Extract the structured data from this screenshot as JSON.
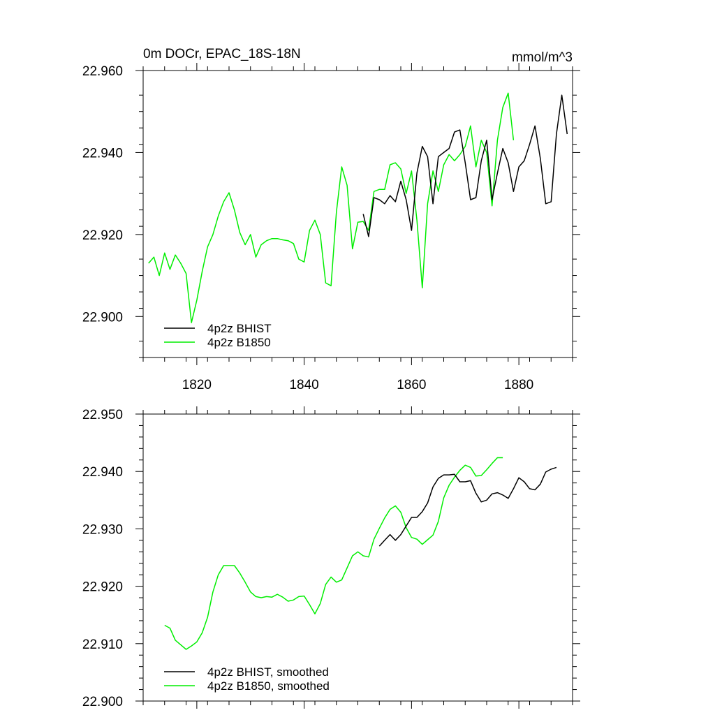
{
  "chart_data": [
    {
      "type": "line",
      "title": "0m DOCr, EPAC_18S-18N",
      "units": "mmol/m^3",
      "xlim": [
        1810,
        1890
      ],
      "ylim": [
        22.89,
        22.96
      ],
      "x_ticks": [
        1820,
        1840,
        1860,
        1880
      ],
      "x_tick_labels": [
        "1820",
        "1840",
        "1860",
        "1880"
      ],
      "y_ticks": [
        22.9,
        22.92,
        22.94,
        22.96
      ],
      "y_tick_labels": [
        "22.900",
        "22.920",
        "22.940",
        "22.960"
      ],
      "legend_position": "bottom-left",
      "grid": false,
      "series": [
        {
          "name": "4p2z BHIST",
          "color": "#000000",
          "x": [
            1851,
            1852,
            1853,
            1854,
            1855,
            1856,
            1857,
            1858,
            1859,
            1860,
            1861,
            1862,
            1863,
            1864,
            1865,
            1866,
            1867,
            1868,
            1869,
            1870,
            1871,
            1872,
            1873,
            1874,
            1875,
            1876,
            1877,
            1878,
            1879,
            1880,
            1881,
            1882,
            1883,
            1884,
            1885,
            1886,
            1887,
            1888,
            1889
          ],
          "y": [
            22.925,
            22.9195,
            22.929,
            22.9285,
            22.9275,
            22.9295,
            22.928,
            22.933,
            22.9285,
            22.921,
            22.935,
            22.9415,
            22.939,
            22.9275,
            22.939,
            22.94,
            22.941,
            22.945,
            22.9455,
            22.9375,
            22.9285,
            22.929,
            22.938,
            22.943,
            22.9285,
            22.935,
            22.941,
            22.9375,
            22.9305,
            22.9365,
            22.938,
            22.942,
            22.9465,
            22.9385,
            22.9275,
            22.928,
            22.9445,
            22.954,
            22.9445
          ]
        },
        {
          "name": "4p2z B1850",
          "color": "#00ee00",
          "x": [
            1811,
            1812,
            1813,
            1814,
            1815,
            1816,
            1817,
            1818,
            1819,
            1820,
            1821,
            1822,
            1823,
            1824,
            1825,
            1826,
            1827,
            1828,
            1829,
            1830,
            1831,
            1832,
            1833,
            1834,
            1835,
            1836,
            1837,
            1838,
            1839,
            1840,
            1841,
            1842,
            1843,
            1844,
            1845,
            1846,
            1847,
            1848,
            1849,
            1850,
            1851,
            1852,
            1853,
            1854,
            1855,
            1856,
            1857,
            1858,
            1859,
            1860,
            1861,
            1862,
            1863,
            1864,
            1865,
            1866,
            1867,
            1868,
            1869,
            1870,
            1871,
            1872,
            1873,
            1874,
            1875,
            1876,
            1877,
            1878,
            1879
          ],
          "y": [
            22.913,
            22.9145,
            22.91,
            22.9155,
            22.9115,
            22.915,
            22.913,
            22.9105,
            22.8985,
            22.904,
            22.911,
            22.917,
            22.92,
            22.9245,
            22.928,
            22.9302,
            22.926,
            22.9205,
            22.9175,
            22.92,
            22.9145,
            22.9175,
            22.9185,
            22.919,
            22.919,
            22.9187,
            22.9185,
            22.9178,
            22.914,
            22.9133,
            22.921,
            22.9235,
            22.92,
            22.9082,
            22.9075,
            22.9255,
            22.9365,
            22.932,
            22.9165,
            22.923,
            22.9232,
            22.921,
            22.9305,
            22.931,
            22.931,
            22.937,
            22.9375,
            22.936,
            22.93,
            22.9355,
            22.9235,
            22.907,
            22.9275,
            22.9355,
            22.9305,
            22.937,
            22.9395,
            22.938,
            22.9395,
            22.9415,
            22.9465,
            22.9365,
            22.943,
            22.94,
            22.927,
            22.943,
            22.951,
            22.9545,
            22.943
          ]
        }
      ]
    },
    {
      "type": "line",
      "title": "",
      "xlim": [
        1810,
        1890
      ],
      "ylim": [
        22.9,
        22.95
      ],
      "x_ticks": [
        1820,
        1840,
        1860,
        1880
      ],
      "y_ticks": [
        22.9,
        22.91,
        22.92,
        22.93,
        22.94,
        22.95
      ],
      "y_tick_labels": [
        "22.900",
        "22.910",
        "22.920",
        "22.930",
        "22.940",
        "22.950"
      ],
      "legend_position": "bottom-left",
      "grid": false,
      "series": [
        {
          "name": "4p2z BHIST, smoothed",
          "color": "#000000",
          "x": [
            1854,
            1855,
            1856,
            1857,
            1858,
            1859,
            1860,
            1861,
            1862,
            1863,
            1864,
            1865,
            1866,
            1867,
            1868,
            1869,
            1870,
            1871,
            1872,
            1873,
            1874,
            1875,
            1876,
            1877,
            1878,
            1879,
            1880,
            1881,
            1882,
            1883,
            1884,
            1885,
            1886,
            1887
          ],
          "y": [
            22.927,
            22.928,
            22.929,
            22.928,
            22.929,
            22.9305,
            22.932,
            22.932,
            22.933,
            22.9345,
            22.9373,
            22.9388,
            22.9394,
            22.9394,
            22.9395,
            22.9382,
            22.9382,
            22.9384,
            22.9362,
            22.9347,
            22.935,
            22.9361,
            22.9363,
            22.9359,
            22.9353,
            22.937,
            22.9389,
            22.9382,
            22.937,
            22.9368,
            22.9378,
            22.9399,
            22.9404,
            22.9407
          ]
        },
        {
          "name": "4p2z B1850, smoothed",
          "color": "#00ee00",
          "x": [
            1814,
            1815,
            1816,
            1817,
            1818,
            1819,
            1820,
            1821,
            1822,
            1823,
            1824,
            1825,
            1826,
            1827,
            1828,
            1829,
            1830,
            1831,
            1832,
            1833,
            1834,
            1835,
            1836,
            1837,
            1838,
            1839,
            1840,
            1841,
            1842,
            1843,
            1844,
            1845,
            1846,
            1847,
            1848,
            1849,
            1850,
            1851,
            1852,
            1853,
            1854,
            1855,
            1856,
            1857,
            1858,
            1859,
            1860,
            1861,
            1862,
            1863,
            1864,
            1865,
            1866,
            1867,
            1868,
            1869,
            1870,
            1871,
            1872,
            1873,
            1874,
            1875,
            1876,
            1877
          ],
          "y": [
            22.9132,
            22.9127,
            22.9106,
            22.9098,
            22.909,
            22.9096,
            22.9103,
            22.9119,
            22.9146,
            22.919,
            22.922,
            22.9236,
            22.9236,
            22.9236,
            22.9223,
            22.9207,
            22.919,
            22.9182,
            22.918,
            22.9182,
            22.9181,
            22.9186,
            22.9181,
            22.9174,
            22.9176,
            22.9182,
            22.9183,
            22.9168,
            22.9152,
            22.917,
            22.9203,
            22.9216,
            22.9207,
            22.9211,
            22.9232,
            22.9253,
            22.926,
            22.9253,
            22.9251,
            22.9282,
            22.9301,
            22.9319,
            22.9334,
            22.934,
            22.9329,
            22.9302,
            22.9285,
            22.9282,
            22.9273,
            22.9281,
            22.9289,
            22.9313,
            22.9354,
            22.9376,
            22.939,
            22.9402,
            22.9411,
            22.9407,
            22.9392,
            22.9393,
            22.9403,
            22.9414,
            22.9424,
            22.9424
          ]
        }
      ]
    }
  ]
}
